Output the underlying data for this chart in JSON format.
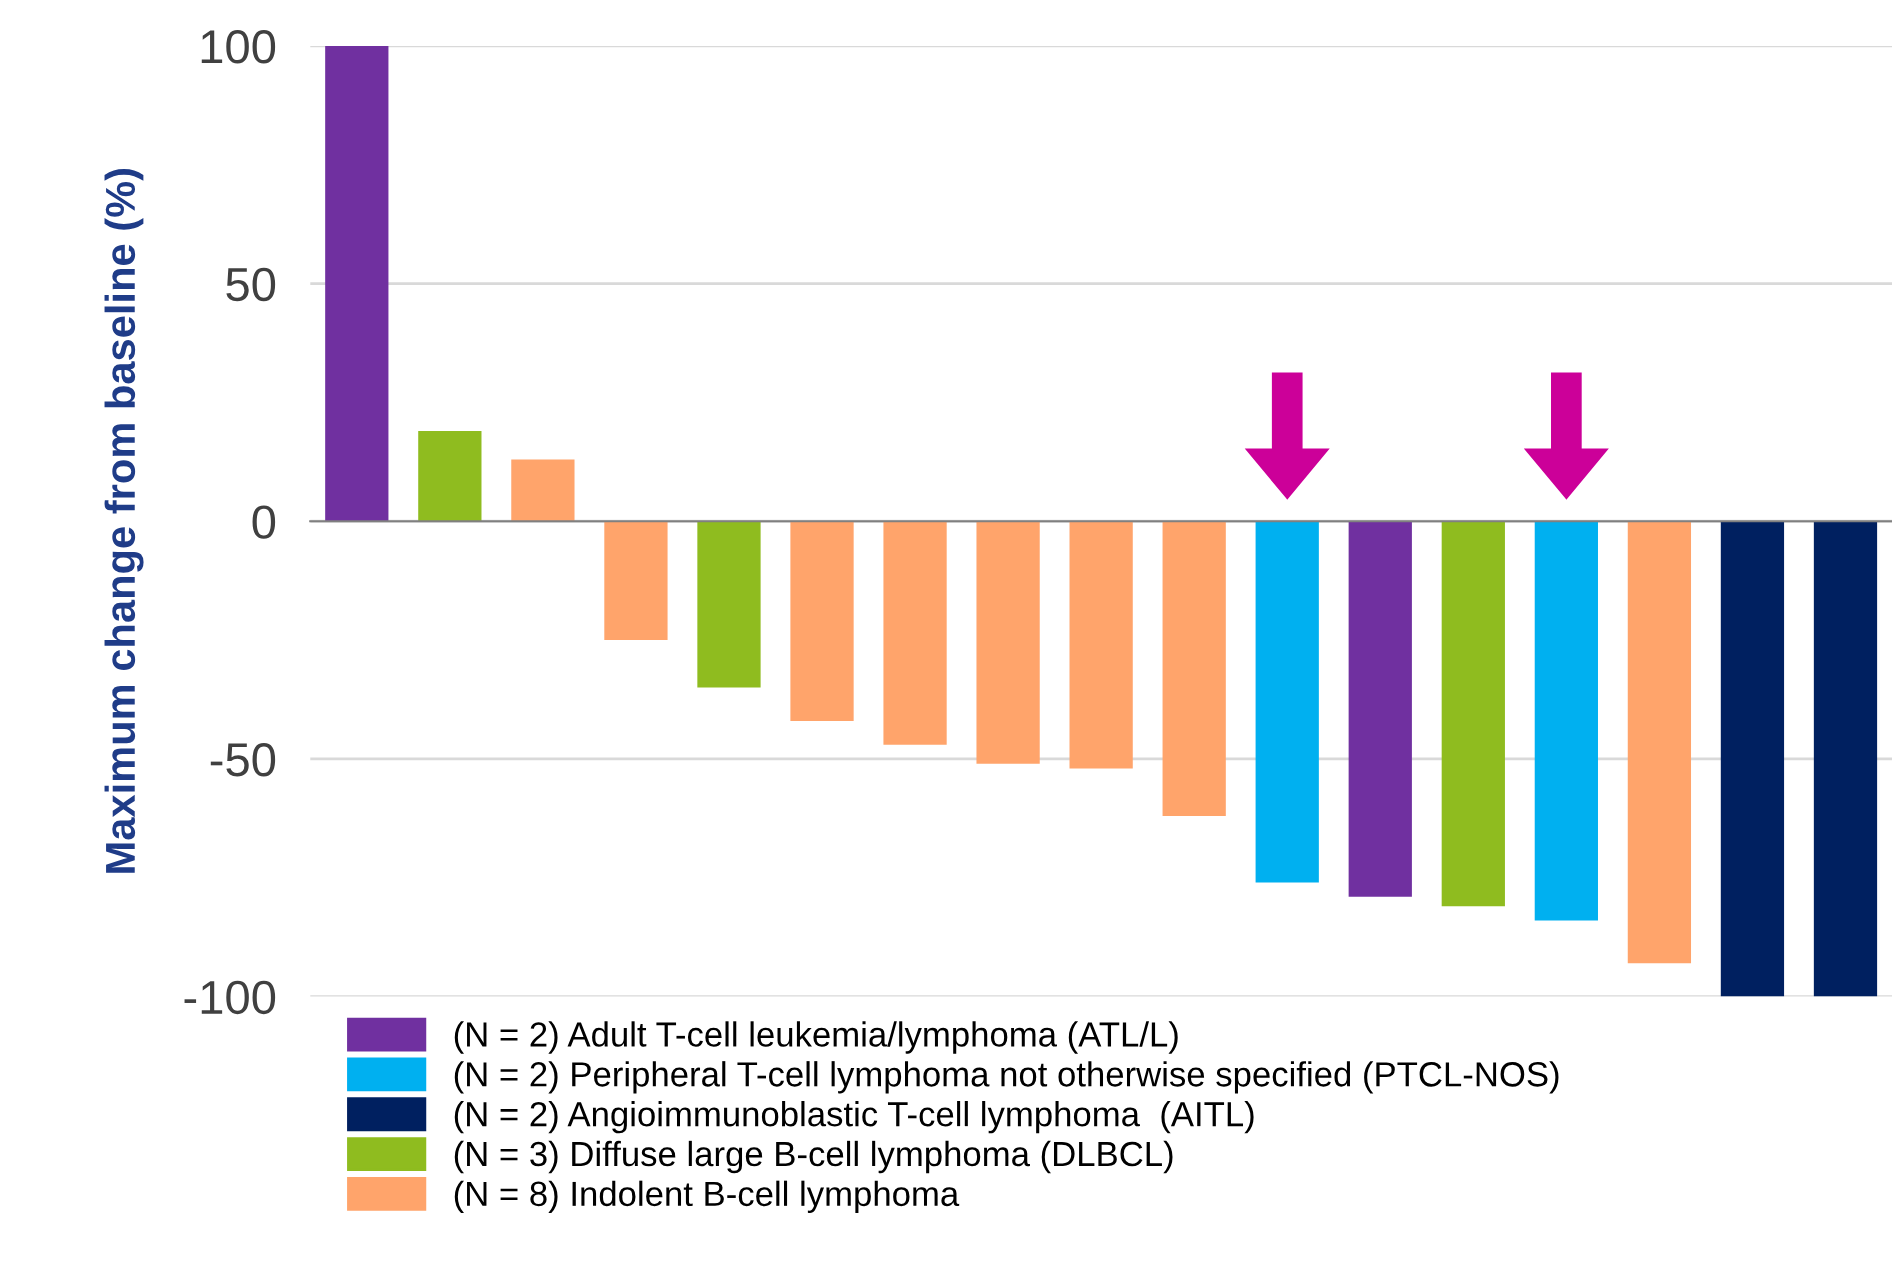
{
  "chart_data": {
    "type": "bar",
    "ylabel": "Maximum change from baseline (%)",
    "categories": [
      null,
      null,
      null,
      null,
      null,
      null,
      null,
      null,
      null,
      null,
      null,
      null,
      null,
      null,
      null,
      null,
      null
    ],
    "series": [
      {
        "name": "(N = 2) Adult T-cell leukemia/lymphoma (ATL/L)",
        "color": "#7030a0",
        "values": [
          100,
          null,
          null,
          null,
          null,
          null,
          null,
          null,
          null,
          null,
          null,
          -79,
          null,
          null,
          null,
          null,
          null
        ]
      },
      {
        "name": "(N = 2) Peripheral T-cell lymphoma not otherwise specified (PTCL-NOS)",
        "color": "#00b0f0",
        "values": [
          null,
          null,
          null,
          null,
          null,
          null,
          null,
          null,
          null,
          null,
          -76,
          null,
          null,
          -84,
          null,
          null,
          null
        ]
      },
      {
        "name": "(N = 2) Angioimmunoblastic T-cell lymphoma  (AITL)",
        "color": "#002060",
        "values": [
          null,
          null,
          null,
          null,
          null,
          null,
          null,
          null,
          null,
          null,
          null,
          null,
          null,
          null,
          null,
          -100,
          -100
        ]
      },
      {
        "name": "(N = 3) Diffuse large B-cell lymphoma (DLBCL)",
        "color": "#8fbc1f",
        "values": [
          null,
          19,
          null,
          null,
          -35,
          null,
          null,
          null,
          null,
          null,
          null,
          null,
          -81,
          null,
          null,
          null,
          null
        ]
      },
      {
        "name": "(N = 8) Indolent B-cell lymphoma",
        "color": "#ffa46b",
        "values": [
          null,
          null,
          13,
          -25,
          null,
          -42,
          -47,
          -51,
          -52,
          -62,
          null,
          null,
          null,
          null,
          -93,
          null,
          null
        ]
      }
    ],
    "ylim": [
      -100,
      100
    ],
    "yticks": [
      -100,
      -50,
      0,
      50,
      100
    ],
    "grid": "y",
    "legend": "bottom"
  }
}
